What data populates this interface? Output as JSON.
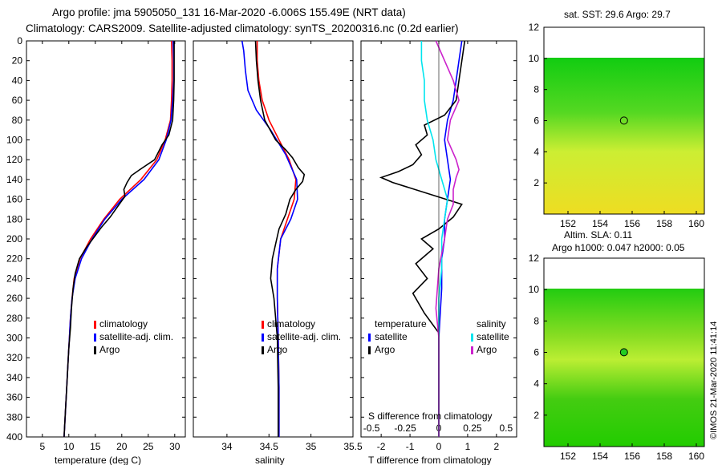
{
  "header": {
    "line1": "Argo profile: jma 5905050_131 16-Mar-2020 -6.006S 155.49E (NRT data)",
    "line2": "Climatology: CARS2009. Satellite-adjusted climatology: synTS_20200316.nc (0.2d earlier)"
  },
  "copyright": "©IMOS 21-Mar-2020 11:41:14",
  "colors": {
    "climatology": "#ff0000",
    "satellite": "#0000ff",
    "argo": "#000000",
    "sal_satellite": "#00e5ee",
    "sal_argo": "#cc22cc",
    "map_yellow": "#ccee33",
    "map_green": "#11cc11"
  },
  "chart_data": [
    {
      "id": "temperature",
      "type": "line",
      "xlabel": "temperature (deg C)",
      "xlim": [
        2,
        32
      ],
      "ylim": [
        0,
        400
      ],
      "xticks": [
        "5",
        "10",
        "15",
        "20",
        "25",
        "30"
      ],
      "xtick_values": [
        5,
        10,
        15,
        20,
        25,
        30
      ],
      "yticks": [
        "0",
        "20",
        "40",
        "60",
        "80",
        "100",
        "120",
        "140",
        "160",
        "180",
        "200",
        "220",
        "240",
        "260",
        "280",
        "300",
        "320",
        "340",
        "360",
        "380",
        "400"
      ],
      "ytick_values": [
        0,
        20,
        40,
        60,
        80,
        100,
        120,
        140,
        160,
        180,
        200,
        220,
        240,
        260,
        280,
        300,
        320,
        340,
        360,
        380,
        400
      ],
      "legend": [
        "climatology",
        "satellite-adj. clim.",
        "Argo"
      ],
      "series": [
        {
          "name": "climatology",
          "color": "#ff0000",
          "points": [
            [
              29.4,
              0
            ],
            [
              29.5,
              20
            ],
            [
              29.5,
              40
            ],
            [
              29.4,
              60
            ],
            [
              29.2,
              80
            ],
            [
              28.2,
              100
            ],
            [
              26.6,
              120
            ],
            [
              23.6,
              140
            ],
            [
              19.6,
              160
            ],
            [
              16.6,
              180
            ],
            [
              14.1,
              200
            ],
            [
              12.1,
              220
            ],
            [
              11.0,
              240
            ],
            [
              10.6,
              260
            ],
            [
              10.3,
              280
            ],
            [
              10.1,
              300
            ],
            [
              9.9,
              320
            ],
            [
              9.7,
              340
            ],
            [
              9.5,
              360
            ],
            [
              9.3,
              380
            ],
            [
              9.1,
              400
            ]
          ]
        },
        {
          "name": "satellite-adj. clim.",
          "color": "#0000ff",
          "points": [
            [
              29.7,
              0
            ],
            [
              29.8,
              20
            ],
            [
              29.8,
              40
            ],
            [
              29.6,
              60
            ],
            [
              29.3,
              80
            ],
            [
              28.4,
              100
            ],
            [
              27.0,
              120
            ],
            [
              24.2,
              140
            ],
            [
              20.0,
              160
            ],
            [
              16.8,
              180
            ],
            [
              14.4,
              200
            ],
            [
              12.4,
              220
            ],
            [
              11.2,
              240
            ],
            [
              10.6,
              260
            ],
            [
              10.3,
              280
            ],
            [
              10.1,
              300
            ],
            [
              9.9,
              320
            ],
            [
              9.7,
              340
            ],
            [
              9.5,
              360
            ],
            [
              9.3,
              380
            ],
            [
              9.1,
              400
            ]
          ]
        },
        {
          "name": "Argo",
          "color": "#000000",
          "points": [
            [
              29.9,
              0
            ],
            [
              29.9,
              20
            ],
            [
              29.9,
              40
            ],
            [
              29.8,
              60
            ],
            [
              29.6,
              80
            ],
            [
              28.9,
              95
            ],
            [
              27.6,
              105
            ],
            [
              26.2,
              120
            ],
            [
              23.4,
              130
            ],
            [
              21.8,
              136
            ],
            [
              21.0,
              143
            ],
            [
              20.4,
              150
            ],
            [
              20.6,
              157
            ],
            [
              19.4,
              166
            ],
            [
              17.8,
              178
            ],
            [
              16.2,
              188
            ],
            [
              14.8,
              198
            ],
            [
              13.4,
              208
            ],
            [
              12.0,
              220
            ],
            [
              11.2,
              235
            ],
            [
              10.8,
              250
            ],
            [
              10.5,
              270
            ],
            [
              10.3,
              290
            ],
            [
              10.0,
              310
            ],
            [
              9.8,
              330
            ],
            [
              9.6,
              350
            ],
            [
              9.4,
              370
            ],
            [
              9.2,
              390
            ],
            [
              9.1,
              400
            ]
          ]
        }
      ]
    },
    {
      "id": "salinity",
      "type": "line",
      "xlabel": "salinity",
      "xlim": [
        33.6,
        35.5
      ],
      "ylim": [
        0,
        400
      ],
      "xticks": [
        "34",
        "34.5",
        "35",
        "35.5"
      ],
      "xtick_values": [
        34,
        34.5,
        35,
        35.5
      ],
      "legend": [
        "climatology",
        "satellite-adj. clim.",
        "Argo"
      ],
      "series": [
        {
          "name": "climatology",
          "color": "#ff0000",
          "points": [
            [
              34.36,
              0
            ],
            [
              34.36,
              20
            ],
            [
              34.38,
              40
            ],
            [
              34.42,
              60
            ],
            [
              34.5,
              80
            ],
            [
              34.62,
              100
            ],
            [
              34.74,
              120
            ],
            [
              34.82,
              140
            ],
            [
              34.8,
              160
            ],
            [
              34.72,
              180
            ],
            [
              34.64,
              200
            ],
            [
              34.6,
              230
            ],
            [
              34.6,
              260
            ],
            [
              34.61,
              300
            ],
            [
              34.62,
              350
            ],
            [
              34.62,
              400
            ]
          ]
        },
        {
          "name": "satellite-adj. clim.",
          "color": "#0000ff",
          "points": [
            [
              34.18,
              0
            ],
            [
              34.2,
              10
            ],
            [
              34.22,
              30
            ],
            [
              34.25,
              50
            ],
            [
              34.35,
              70
            ],
            [
              34.52,
              90
            ],
            [
              34.7,
              115
            ],
            [
              34.83,
              140
            ],
            [
              34.84,
              160
            ],
            [
              34.76,
              180
            ],
            [
              34.64,
              200
            ],
            [
              34.6,
              230
            ],
            [
              34.6,
              260
            ],
            [
              34.61,
              300
            ],
            [
              34.62,
              350
            ],
            [
              34.62,
              400
            ]
          ]
        },
        {
          "name": "Argo",
          "color": "#000000",
          "points": [
            [
              34.34,
              0
            ],
            [
              34.35,
              20
            ],
            [
              34.37,
              40
            ],
            [
              34.4,
              60
            ],
            [
              34.45,
              80
            ],
            [
              34.58,
              100
            ],
            [
              34.7,
              110
            ],
            [
              34.78,
              118
            ],
            [
              34.85,
              128
            ],
            [
              34.92,
              135
            ],
            [
              34.9,
              142
            ],
            [
              34.82,
              150
            ],
            [
              34.75,
              160
            ],
            [
              34.7,
              175
            ],
            [
              34.62,
              190
            ],
            [
              34.58,
              205
            ],
            [
              34.54,
              220
            ],
            [
              34.52,
              240
            ],
            [
              34.56,
              260
            ],
            [
              34.58,
              280
            ],
            [
              34.6,
              300
            ],
            [
              34.61,
              350
            ],
            [
              34.61,
              400
            ]
          ]
        }
      ]
    },
    {
      "id": "difference",
      "type": "line",
      "xlabel": "T difference from climatology",
      "xlim": [
        -2.7,
        2.7
      ],
      "ylim": [
        0,
        400
      ],
      "xticks": [
        "-2",
        "-1",
        "0",
        "1",
        "2"
      ],
      "xtick_values": [
        -2,
        -1,
        0,
        1,
        2
      ],
      "top_axis_label": "S difference from climatology",
      "top_ticks": [
        "-0.5",
        "-0.25",
        "0",
        "0.25",
        "0.5"
      ],
      "top_tick_values": [
        -2,
        -1,
        0,
        1,
        2
      ],
      "legend_temperature_title": "temperature",
      "legend_salinity_title": "salinity",
      "legend": [
        "satellite",
        "Argo",
        "satellite",
        "Argo"
      ],
      "series": [
        {
          "name": "T satellite",
          "color": "#0000ff",
          "points": [
            [
              0.8,
              0
            ],
            [
              0.7,
              20
            ],
            [
              0.6,
              40
            ],
            [
              0.5,
              60
            ],
            [
              0.3,
              80
            ],
            [
              0.2,
              100
            ],
            [
              0.3,
              120
            ],
            [
              0.4,
              140
            ],
            [
              0.3,
              160
            ],
            [
              0.2,
              180
            ],
            [
              0.2,
              200
            ],
            [
              0.1,
              220
            ],
            [
              0.1,
              250
            ],
            [
              0.0,
              300
            ],
            [
              0.0,
              350
            ],
            [
              0.0,
              400
            ]
          ]
        },
        {
          "name": "T Argo",
          "color": "#000000",
          "points": [
            [
              0.9,
              0
            ],
            [
              0.8,
              20
            ],
            [
              0.7,
              40
            ],
            [
              0.6,
              60
            ],
            [
              0.2,
              75
            ],
            [
              -0.5,
              85
            ],
            [
              -0.4,
              95
            ],
            [
              -0.8,
              105
            ],
            [
              -0.6,
              115
            ],
            [
              -0.9,
              125
            ],
            [
              -1.4,
              132
            ],
            [
              -2.0,
              138
            ],
            [
              -1.6,
              143
            ],
            [
              0.8,
              165
            ],
            [
              0.5,
              178
            ],
            [
              0.0,
              190
            ],
            [
              -0.6,
              200
            ],
            [
              -0.2,
              210
            ],
            [
              -0.8,
              225
            ],
            [
              -0.4,
              240
            ],
            [
              -0.9,
              255
            ],
            [
              -0.5,
              275
            ],
            [
              0.0,
              295
            ],
            [
              0.0,
              350
            ],
            [
              0.0,
              400
            ]
          ]
        },
        {
          "name": "S satellite",
          "color": "#00e5ee",
          "points": [
            [
              -0.6,
              0
            ],
            [
              -0.6,
              20
            ],
            [
              -0.5,
              40
            ],
            [
              -0.5,
              60
            ],
            [
              -0.4,
              80
            ],
            [
              -0.2,
              100
            ],
            [
              -0.1,
              120
            ],
            [
              0.1,
              140
            ],
            [
              0.3,
              160
            ],
            [
              0.2,
              180
            ],
            [
              0.1,
              200
            ],
            [
              0.1,
              230
            ],
            [
              0.0,
              260
            ],
            [
              0.0,
              300
            ],
            [
              0.0,
              350
            ],
            [
              0.0,
              400
            ]
          ]
        },
        {
          "name": "S Argo",
          "color": "#cc22cc",
          "points": [
            [
              -0.1,
              0
            ],
            [
              0.2,
              20
            ],
            [
              0.5,
              40
            ],
            [
              0.7,
              60
            ],
            [
              0.4,
              80
            ],
            [
              0.3,
              100
            ],
            [
              0.6,
              120
            ],
            [
              0.7,
              130
            ],
            [
              0.6,
              138
            ],
            [
              0.5,
              150
            ],
            [
              0.5,
              165
            ],
            [
              0.3,
              180
            ],
            [
              0.2,
              200
            ],
            [
              0.0,
              230
            ],
            [
              -0.1,
              270
            ],
            [
              0.0,
              300
            ],
            [
              0.0,
              350
            ],
            [
              0.0,
              400
            ]
          ]
        }
      ]
    },
    {
      "id": "sst_map",
      "type": "heatmap",
      "title": "sat. SST: 29.6 Argo: 29.7",
      "xticks": [
        "152",
        "154",
        "156",
        "158",
        "160"
      ],
      "xtick_values": [
        152,
        154,
        156,
        158,
        160
      ],
      "yticks": [
        "2",
        "4",
        "6",
        "8",
        "10",
        "12"
      ],
      "ytick_values": [
        2,
        4,
        6,
        8,
        10,
        12
      ],
      "xlim": [
        150.5,
        160.5
      ],
      "ylim": [
        0,
        12
      ],
      "marker": [
        155.49,
        6.006
      ]
    },
    {
      "id": "sla_map",
      "type": "heatmap",
      "title_line1": "Altim. SLA: 0.11",
      "title_line2": "Argo h1000: 0.047 h2000: 0.05",
      "xticks": [
        "152",
        "154",
        "156",
        "158",
        "160"
      ],
      "xtick_values": [
        152,
        154,
        156,
        158,
        160
      ],
      "yticks": [
        "2",
        "4",
        "6",
        "8",
        "10",
        "12"
      ],
      "ytick_values": [
        2,
        4,
        6,
        8,
        10,
        12
      ],
      "xlim": [
        150.5,
        160.5
      ],
      "ylim": [
        0,
        12
      ],
      "marker": [
        155.49,
        6.006
      ]
    }
  ]
}
